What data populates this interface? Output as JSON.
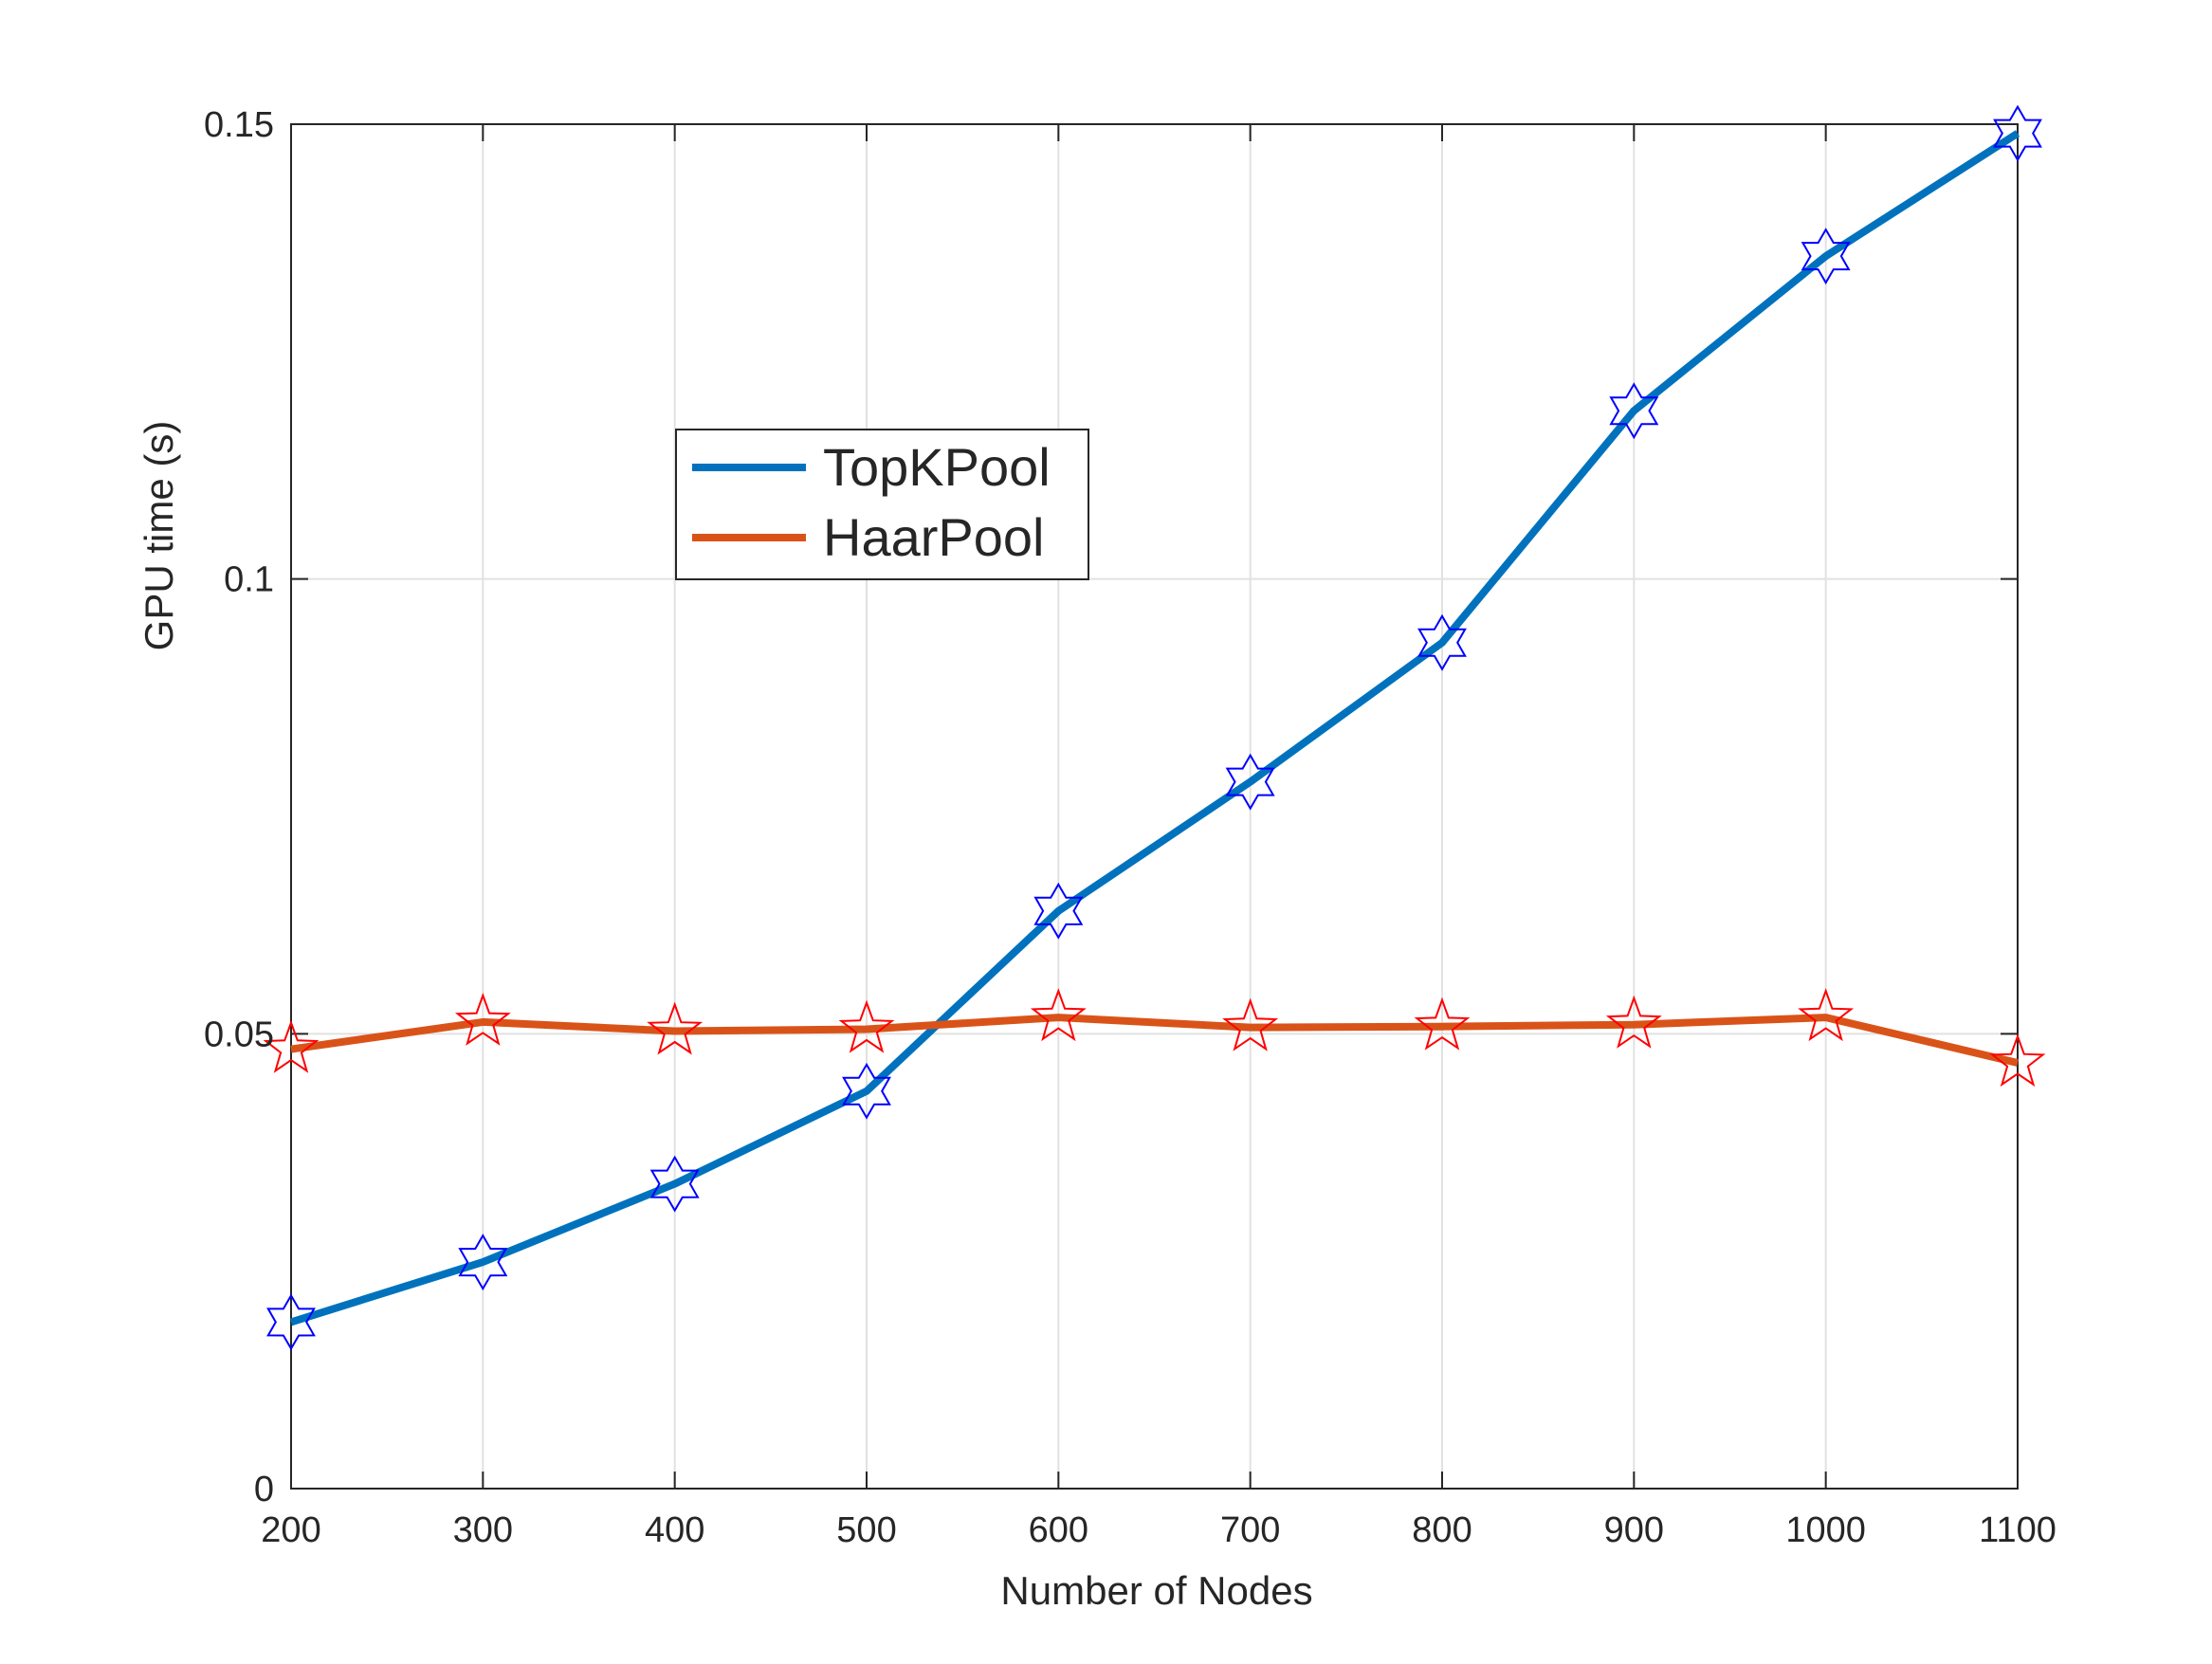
{
  "chart_data": {
    "type": "line",
    "title": "",
    "xlabel": "Number of Nodes",
    "ylabel": "GPU time (s)",
    "xlim": [
      200,
      1100
    ],
    "ylim": [
      0,
      0.15
    ],
    "x": [
      200,
      300,
      400,
      500,
      600,
      700,
      800,
      900,
      1000,
      1100
    ],
    "x_tick_labels": [
      "200",
      "300",
      "400",
      "500",
      "600",
      "700",
      "800",
      "900",
      "1000",
      "1100"
    ],
    "y_ticks": [
      0,
      0.05,
      0.1,
      0.15
    ],
    "y_tick_labels": [
      "0",
      "0.05",
      "0.1",
      "0.15"
    ],
    "grid": true,
    "legend_position": "upper-center-left",
    "series": [
      {
        "name": "TopKPool",
        "line_color": "#0072BD",
        "marker": "hexagram",
        "marker_color": "#0000FF",
        "values": [
          0.0183,
          0.0249,
          0.0335,
          0.0437,
          0.0635,
          0.0777,
          0.093,
          0.1185,
          0.1355,
          0.149
        ]
      },
      {
        "name": "HaarPool",
        "line_color": "#D95319",
        "marker": "pentagram",
        "marker_color": "#FF0000",
        "values": [
          0.0483,
          0.0513,
          0.0503,
          0.0505,
          0.0518,
          0.0507,
          0.0508,
          0.051,
          0.0518,
          0.0468
        ]
      }
    ]
  }
}
